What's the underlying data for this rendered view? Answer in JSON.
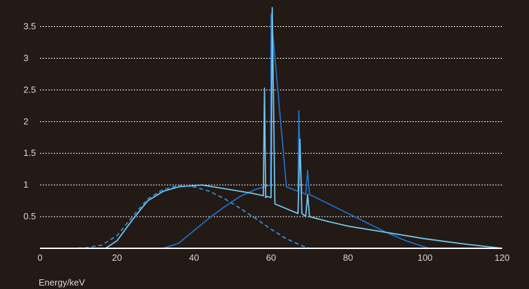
{
  "chart_data": {
    "type": "line",
    "title": "",
    "xlabel": "Energy/keV",
    "ylabel": "",
    "xlim": [
      0,
      120
    ],
    "ylim": [
      0,
      3.8
    ],
    "xticks": [
      "0",
      "20",
      "40",
      "60",
      "80",
      "100",
      "120"
    ],
    "yticks": [
      "0.5",
      "1",
      "1.5",
      "2",
      "2.5",
      "3",
      "3.5"
    ],
    "grid": "horizontal dotted",
    "legend": "none",
    "colors": {
      "background": "#231915",
      "axis": "#ffffff",
      "grid": "#ffffff",
      "text": "#d9d9d9",
      "light_blue": "#6ec6ee",
      "dark_blue": "#1f6fc4",
      "dashed_blue": "#2f8fd8"
    },
    "series": [
      {
        "color": "#1f6fc4",
        "style": "solid",
        "x": [
          32,
          36,
          40,
          44,
          48,
          52,
          56,
          59.9,
          60,
          64,
          67,
          67.2,
          67.5,
          68,
          69,
          69.5,
          70,
          75,
          80,
          85,
          90,
          95,
          100,
          101
        ],
        "y": [
          0.0,
          0.08,
          0.28,
          0.48,
          0.66,
          0.82,
          0.93,
          1.0,
          3.7,
          0.97,
          0.9,
          2.17,
          1.5,
          0.88,
          0.85,
          1.23,
          0.85,
          0.7,
          0.55,
          0.4,
          0.25,
          0.12,
          0.02,
          0.0
        ]
      },
      {
        "color": "#6ec6ee",
        "style": "solid",
        "x": [
          17,
          20,
          24,
          28,
          32,
          36,
          40,
          42,
          45,
          50,
          55,
          58,
          58.3,
          58.6,
          59,
          60,
          60.3,
          61,
          65,
          67,
          67.5,
          68,
          69,
          69.5,
          70,
          75,
          80,
          90,
          100,
          110,
          120
        ],
        "y": [
          0.0,
          0.12,
          0.45,
          0.75,
          0.9,
          0.97,
          0.99,
          1.0,
          0.97,
          0.92,
          0.87,
          0.83,
          2.53,
          0.8,
          0.82,
          0.8,
          3.8,
          0.7,
          0.6,
          0.55,
          1.72,
          0.55,
          0.5,
          0.85,
          0.5,
          0.42,
          0.35,
          0.25,
          0.15,
          0.07,
          0.0
        ]
      },
      {
        "color": "#2f8fd8",
        "style": "dashed",
        "x": [
          8,
          12,
          16,
          20,
          24,
          28,
          32,
          36,
          40,
          44,
          48,
          52,
          56,
          60,
          64,
          68,
          70
        ],
        "y": [
          0.0,
          0.01,
          0.05,
          0.2,
          0.5,
          0.78,
          0.93,
          0.99,
          0.97,
          0.9,
          0.78,
          0.63,
          0.47,
          0.3,
          0.15,
          0.04,
          0.0
        ]
      }
    ]
  }
}
